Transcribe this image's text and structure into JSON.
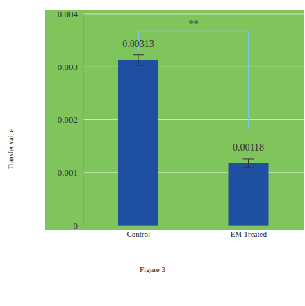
{
  "chart_data": {
    "type": "bar",
    "title": "Figure 3",
    "y_label": "Transfer value",
    "categories": [
      "Control",
      "EM Treated"
    ],
    "values": [
      0.00313,
      0.00118
    ],
    "errors": [
      0.0001,
      8e-05
    ],
    "color": "#1f4fa0",
    "ylim": [
      0,
      0.004
    ],
    "yticks": [
      0,
      0.001,
      0.002,
      0.003,
      0.004
    ],
    "grid": true,
    "data_labels": true,
    "annotations": [
      "**"
    ]
  }
}
